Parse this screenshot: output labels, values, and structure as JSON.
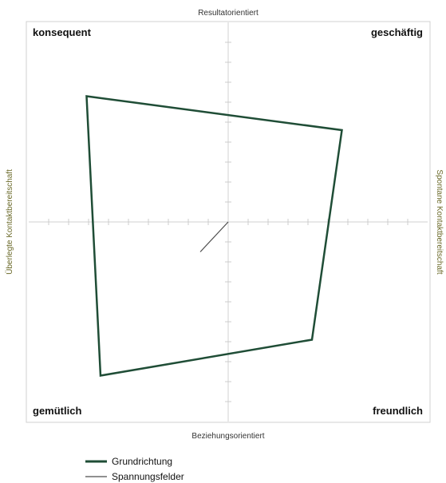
{
  "chart_data": {
    "type": "radar-quadrant",
    "top_label": "Resultatorientiert",
    "bottom_label": "Beziehungsorientiert",
    "left_label": "Überlegte Kontaktbereitschaft",
    "right_label": "Spontane Kontaktbereitschaft",
    "corners": {
      "top_left": "konsequent",
      "top_right": "geschäftig",
      "bottom_left": "gemütlich",
      "bottom_right": "freundlich"
    },
    "xlim": [
      -10,
      10
    ],
    "ylim": [
      -10,
      10
    ],
    "series": [
      {
        "name": "Grundrichtung",
        "color": "#1f4d36",
        "type": "polygon",
        "points": [
          {
            "x": -7.1,
            "y": 6.3
          },
          {
            "x": 5.7,
            "y": 4.6
          },
          {
            "x": 4.2,
            "y": -5.9
          },
          {
            "x": -6.4,
            "y": -7.7
          }
        ]
      },
      {
        "name": "Spannungsfelder",
        "color": "#4d4d4d",
        "type": "line",
        "points": [
          {
            "x": 0,
            "y": 0
          },
          {
            "x": -1.4,
            "y": -1.5
          }
        ]
      }
    ],
    "legend": "bottom-left",
    "grid": false
  }
}
